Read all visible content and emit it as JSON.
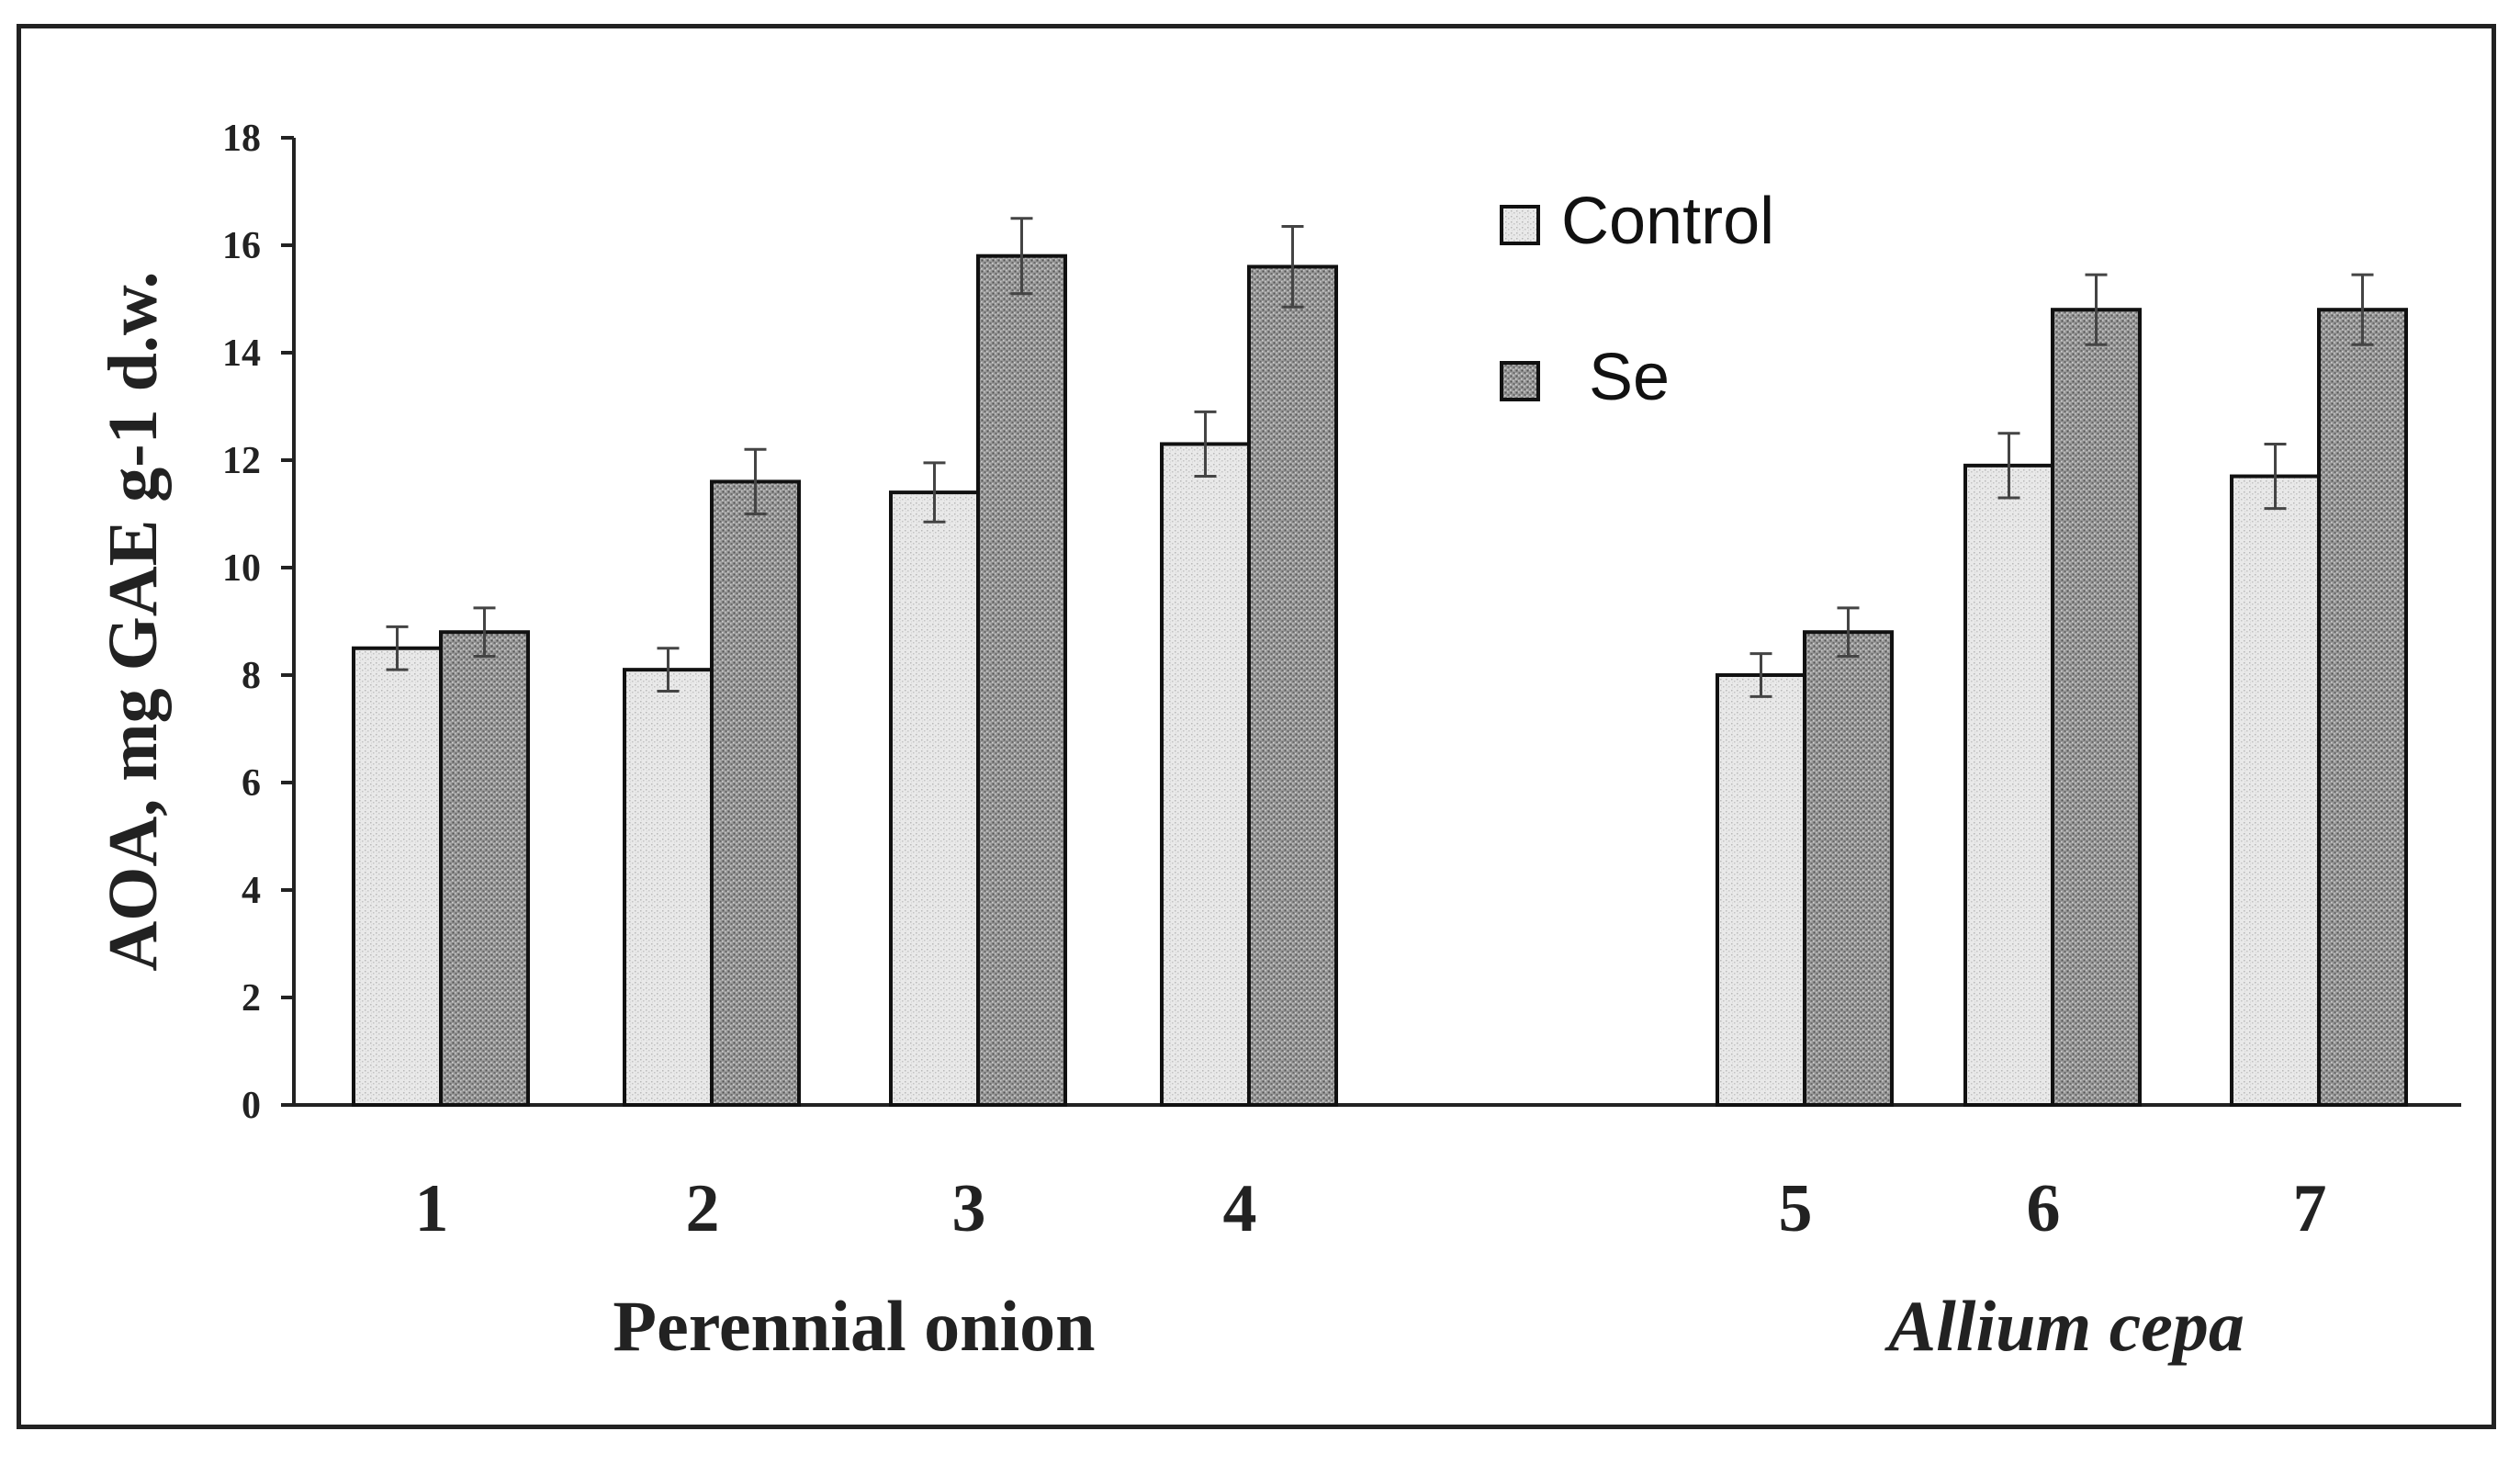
{
  "chart_data": {
    "type": "bar",
    "ylabel": "AOA, mg GAE g-1 d.w.",
    "xlabel": "",
    "ylim": [
      0,
      18
    ],
    "yticks": [
      0,
      2,
      4,
      6,
      8,
      10,
      12,
      14,
      16,
      18
    ],
    "categories": [
      "1",
      "2",
      "3",
      "4",
      "5",
      "6",
      "7"
    ],
    "groups": [
      {
        "label": "Perennial onion",
        "categories": [
          "1",
          "2",
          "3",
          "4"
        ],
        "italic": false
      },
      {
        "label": "Allium cepa",
        "categories": [
          "5",
          "6",
          "7"
        ],
        "italic": true
      }
    ],
    "series": [
      {
        "name": "Control",
        "color": "#e6e6e6",
        "values": [
          8.5,
          8.1,
          11.4,
          12.3,
          8.0,
          11.9,
          11.7
        ],
        "errors": [
          0.4,
          0.4,
          0.55,
          0.6,
          0.4,
          0.6,
          0.6
        ]
      },
      {
        "name": "Se",
        "color": "#8c8c8c",
        "values": [
          8.8,
          11.6,
          15.8,
          15.6,
          8.8,
          14.8,
          14.8
        ],
        "errors": [
          0.45,
          0.6,
          0.7,
          0.75,
          0.45,
          0.65,
          0.65
        ]
      }
    ],
    "legend_position": "top-right",
    "grid": false
  }
}
